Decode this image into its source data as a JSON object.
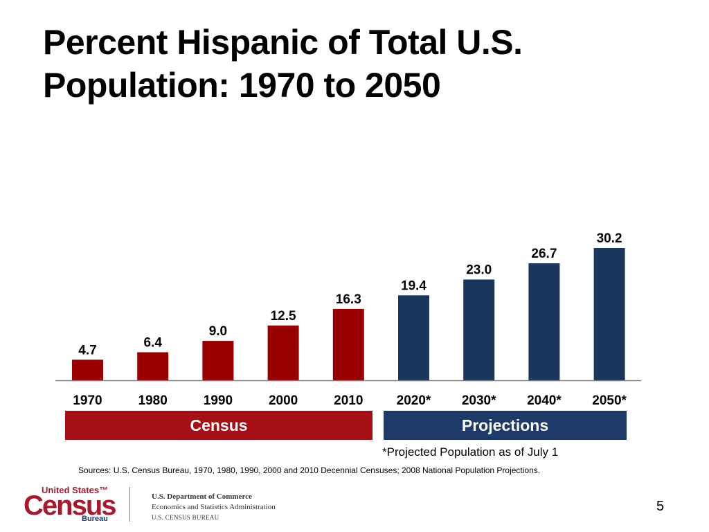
{
  "slide": {
    "title": "Percent Hispanic of Total U.S. Population: 1970 to 2050",
    "page_number": "5"
  },
  "colors": {
    "census": "#990000",
    "projections": "#1b365d",
    "census_band": "#a50f15",
    "projections_band": "#1e3a68"
  },
  "chart_data": {
    "type": "bar",
    "title": "Percent Hispanic of Total U.S. Population: 1970 to 2050",
    "xlabel": "",
    "ylabel": "",
    "ylim": [
      0,
      32
    ],
    "grid": false,
    "categories": [
      "1970",
      "1980",
      "1990",
      "2000",
      "2010",
      "2020*",
      "2030*",
      "2040*",
      "2050*"
    ],
    "values": [
      4.7,
      6.4,
      9.0,
      12.5,
      16.3,
      19.4,
      23.0,
      26.7,
      30.2
    ],
    "value_labels": [
      "4.7",
      "6.4",
      "9.0",
      "12.5",
      "16.3",
      "19.4",
      "23.0",
      "26.7",
      "30.2"
    ],
    "groups": [
      "census",
      "census",
      "census",
      "census",
      "census",
      "projections",
      "projections",
      "projections",
      "projections"
    ]
  },
  "bands": {
    "census_label": "Census",
    "projections_label": "Projections"
  },
  "footnote": "*Projected Population as of July 1",
  "sources": "Sources: U.S. Census Bureau, 1970, 1980, 1990, 2000 and 2010 Decennial Censuses; 2008 National Population Projections.",
  "logo": {
    "top_text": "United States™",
    "main_text": "Census",
    "bottom_text": "Bureau"
  },
  "department": {
    "line1": "U.S. Department of Commerce",
    "line2": "Economics and Statistics Administration",
    "line3": "U.S. CENSUS BUREAU"
  }
}
